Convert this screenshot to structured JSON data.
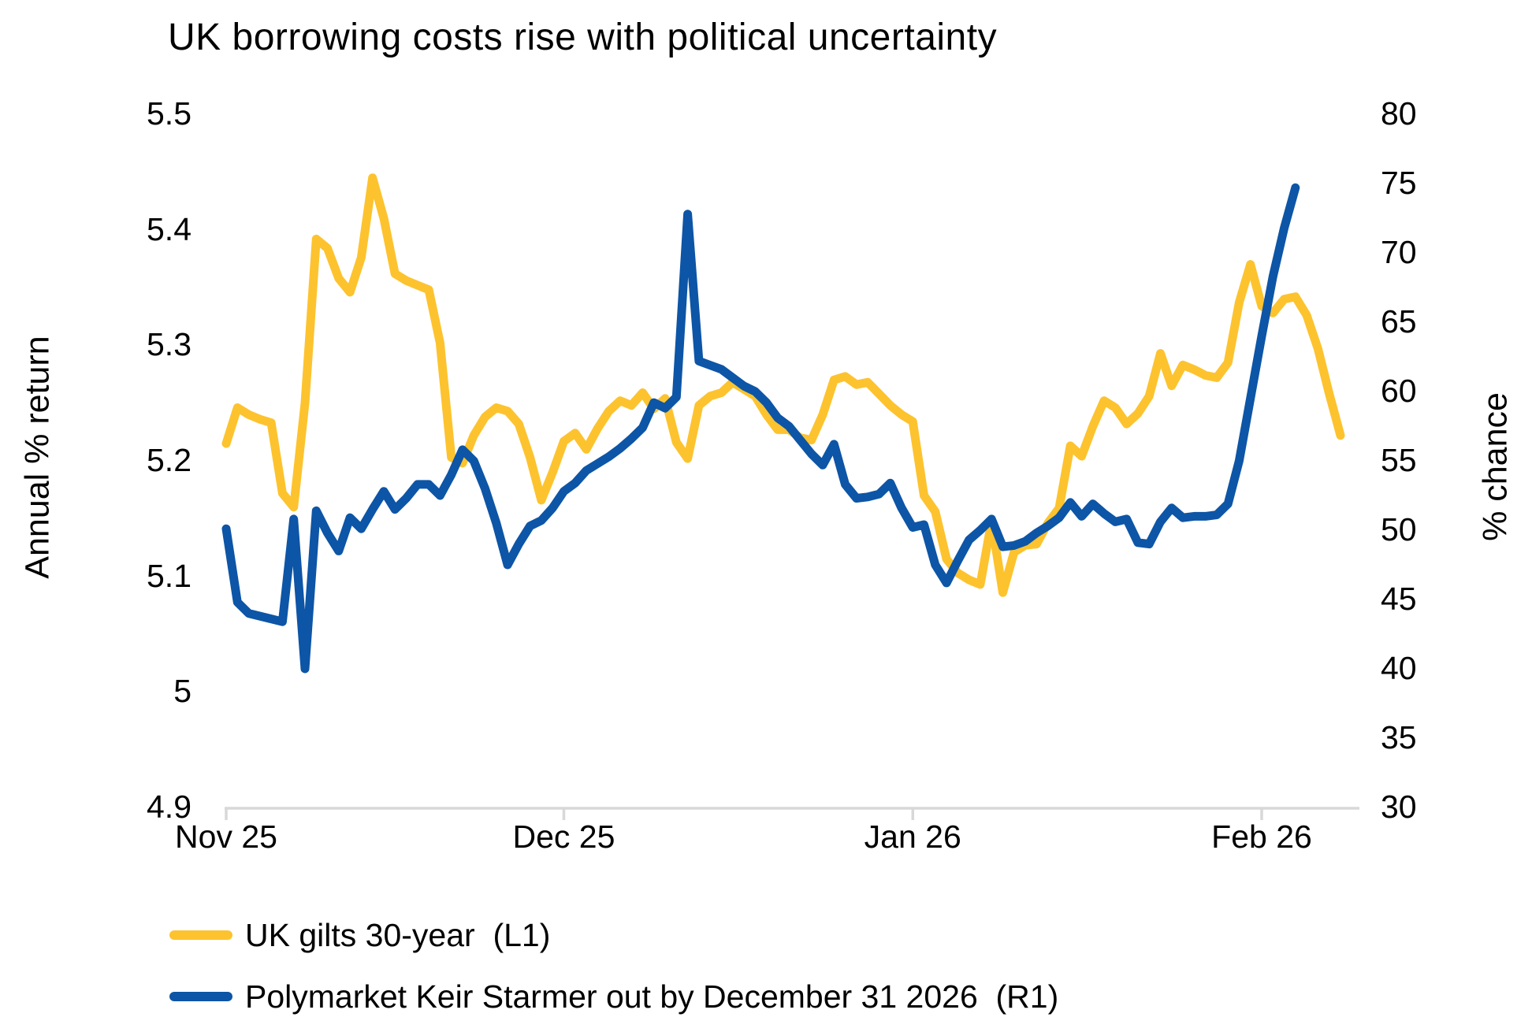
{
  "title": "UK borrowing costs rise with political uncertainty",
  "chart_data": {
    "type": "line",
    "title": "UK borrowing costs rise with political uncertainty",
    "grid": false,
    "legend_position": "bottom-left",
    "x_axis": {
      "tick_labels": [
        "Nov 25",
        "Dec 25",
        "Jan 26",
        "Feb 26"
      ],
      "tick_days": [
        0,
        30,
        61,
        92
      ],
      "total_days": 99
    },
    "left_axis": {
      "label": "Annual % return",
      "min": 4.9,
      "max": 5.5,
      "tick_values": [
        5.5,
        5.4,
        5.3,
        5.2,
        5.1,
        5.0,
        4.9
      ],
      "tick_labels": [
        "5.5",
        "5.4",
        "5.3",
        "5.2",
        "5.1",
        "5",
        "4.9"
      ]
    },
    "right_axis": {
      "label": "% chance",
      "min": 30,
      "max": 80,
      "tick_values": [
        80,
        75,
        70,
        65,
        60,
        55,
        50,
        45,
        40,
        35,
        30
      ],
      "tick_labels": [
        "80",
        "75",
        "70",
        "65",
        "60",
        "55",
        "50",
        "45",
        "40",
        "35",
        "30"
      ]
    },
    "series": [
      {
        "name": "UK gilts 30-year  (L1)",
        "axis": "left",
        "color": "#FDC32E",
        "start_day": 0,
        "values": [
          5.215,
          5.246,
          5.24,
          5.236,
          5.233,
          5.172,
          5.16,
          5.25,
          5.392,
          5.384,
          5.358,
          5.346,
          5.376,
          5.445,
          5.41,
          5.362,
          5.356,
          5.352,
          5.348,
          5.302,
          5.203,
          5.198,
          5.222,
          5.238,
          5.246,
          5.243,
          5.232,
          5.203,
          5.166,
          5.19,
          5.217,
          5.224,
          5.21,
          5.228,
          5.243,
          5.252,
          5.248,
          5.259,
          5.245,
          5.254,
          5.216,
          5.202,
          5.248,
          5.256,
          5.259,
          5.268,
          5.262,
          5.256,
          5.24,
          5.227,
          5.227,
          5.22,
          5.218,
          5.24,
          5.27,
          5.273,
          5.266,
          5.268,
          5.258,
          5.248,
          5.24,
          5.234,
          5.17,
          5.156,
          5.115,
          5.103,
          5.097,
          5.093,
          5.148,
          5.086,
          5.121,
          5.127,
          5.128,
          5.146,
          5.159,
          5.213,
          5.204,
          5.23,
          5.252,
          5.246,
          5.232,
          5.241,
          5.256,
          5.293,
          5.265,
          5.283,
          5.279,
          5.274,
          5.272,
          5.285,
          5.337,
          5.37,
          5.334,
          5.328,
          5.34,
          5.342,
          5.326,
          5.297,
          5.258,
          5.222
        ]
      },
      {
        "name": "Polymarket Keir Starmer out by December 31 2026  (R1)",
        "axis": "right",
        "color": "#0D55A6",
        "start_day": 0,
        "values": [
          50.1,
          44.8,
          44.0,
          43.8,
          43.6,
          43.4,
          50.8,
          40.0,
          51.4,
          49.8,
          48.5,
          50.9,
          50.1,
          51.5,
          52.8,
          51.5,
          52.3,
          53.3,
          53.3,
          52.5,
          54.0,
          55.8,
          55.0,
          53.0,
          50.5,
          47.5,
          49.0,
          50.3,
          50.7,
          51.6,
          52.8,
          53.4,
          54.3,
          54.8,
          55.3,
          55.9,
          56.6,
          57.4,
          59.2,
          58.8,
          59.6,
          72.8,
          62.2,
          61.9,
          61.6,
          61.0,
          60.4,
          60.0,
          59.2,
          58.1,
          57.5,
          56.5,
          55.5,
          54.7,
          56.2,
          53.3,
          52.3,
          52.4,
          52.6,
          53.4,
          51.6,
          50.2,
          50.4,
          47.5,
          46.2,
          47.8,
          49.3,
          50.0,
          50.8,
          48.8,
          48.9,
          49.2,
          49.8,
          50.3,
          50.9,
          52.0,
          51.0,
          51.9,
          51.2,
          50.6,
          50.8,
          49.1,
          49.0,
          50.6,
          51.6,
          50.9,
          51.0,
          51.0,
          51.1,
          51.9,
          55.0,
          59.5,
          64.0,
          68.3,
          71.8,
          74.7
        ]
      }
    ]
  },
  "colors": {
    "background": "#FFFFFF",
    "axis_line": "#D8D8D8",
    "text": "#000000",
    "gilts_line": "#FDC32E",
    "polymarket_line": "#0D55A6"
  }
}
